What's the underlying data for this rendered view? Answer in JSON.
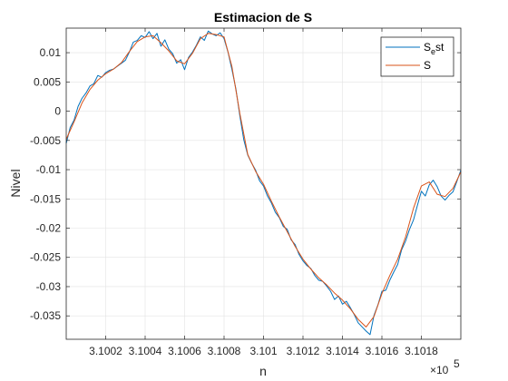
{
  "chart_data": {
    "type": "line",
    "title": "Estimacion de S",
    "xlabel": "n",
    "ylabel": "Nivel",
    "x_exponent_label": "×10",
    "x_exponent_power": "5",
    "xlim": [
      310000,
      310200
    ],
    "ylim": [
      -0.039,
      0.0142
    ],
    "grid": true,
    "legend_position": "top-right",
    "xticks": [
      310020,
      310040,
      310060,
      310080,
      310100,
      310120,
      310140,
      310160,
      310180
    ],
    "xtick_labels": [
      "3.1002",
      "3.1004",
      "3.1006",
      "3.1008",
      "3.101",
      "3.1012",
      "3.1014",
      "3.1016",
      "3.1018"
    ],
    "yticks": [
      0.01,
      0.005,
      0,
      -0.005,
      -0.01,
      -0.015,
      -0.02,
      -0.025,
      -0.03,
      -0.035
    ],
    "ytick_labels": [
      "0.01",
      "0.005",
      "0",
      "-0.005",
      "-0.01",
      "-0.015",
      "-0.02",
      "-0.025",
      "-0.03",
      "-0.035"
    ],
    "series": [
      {
        "name": "S_e st",
        "legend_main": "S",
        "legend_sub": "e",
        "legend_tail": "st",
        "color": "#0072BD",
        "x": [
          310000,
          310002,
          310004,
          310006,
          310008,
          310010,
          310012,
          310014,
          310016,
          310018,
          310020,
          310022,
          310024,
          310026,
          310028,
          310030,
          310032,
          310034,
          310036,
          310038,
          310040,
          310042,
          310044,
          310046,
          310048,
          310050,
          310052,
          310054,
          310056,
          310058,
          310060,
          310062,
          310064,
          310066,
          310068,
          310070,
          310072,
          310074,
          310076,
          310078,
          310080,
          310082,
          310084,
          310086,
          310088,
          310090,
          310092,
          310094,
          310096,
          310098,
          310100,
          310102,
          310104,
          310106,
          310108,
          310110,
          310112,
          310114,
          310116,
          310118,
          310120,
          310122,
          310124,
          310126,
          310128,
          310130,
          310132,
          310134,
          310136,
          310138,
          310140,
          310142,
          310144,
          310146,
          310148,
          310150,
          310152,
          310154,
          310156,
          310158,
          310160,
          310162,
          310164,
          310166,
          310168,
          310170,
          310172,
          310174,
          310176,
          310178,
          310180,
          310182,
          310184,
          310186,
          310188,
          310190,
          310192,
          310194,
          310196,
          310198,
          310200
        ],
        "y": [
          -0.0055,
          -0.0028,
          -0.0015,
          0.0008,
          0.0022,
          0.0031,
          0.0043,
          0.0047,
          0.0061,
          0.0058,
          0.0066,
          0.007,
          0.0072,
          0.0077,
          0.0082,
          0.0087,
          0.0101,
          0.0118,
          0.0121,
          0.0129,
          0.0126,
          0.0136,
          0.0124,
          0.0133,
          0.0111,
          0.0122,
          0.0106,
          0.0098,
          0.0082,
          0.0088,
          0.0071,
          0.0092,
          0.0101,
          0.0113,
          0.0127,
          0.0121,
          0.0137,
          0.0132,
          0.0129,
          0.0134,
          0.0124,
          0.0101,
          0.0071,
          0.0038,
          -0.0008,
          -0.0049,
          -0.0075,
          -0.0089,
          -0.0101,
          -0.0119,
          -0.0128,
          -0.0145,
          -0.0157,
          -0.0173,
          -0.0182,
          -0.0197,
          -0.0202,
          -0.022,
          -0.0228,
          -0.0245,
          -0.0256,
          -0.0264,
          -0.0269,
          -0.0281,
          -0.0289,
          -0.0291,
          -0.0299,
          -0.0308,
          -0.0322,
          -0.0316,
          -0.033,
          -0.0325,
          -0.0336,
          -0.0348,
          -0.0362,
          -0.0369,
          -0.0376,
          -0.0382,
          -0.0349,
          -0.0331,
          -0.0308,
          -0.0306,
          -0.0289,
          -0.0275,
          -0.0262,
          -0.0237,
          -0.0222,
          -0.0202,
          -0.0186,
          -0.0161,
          -0.0137,
          -0.0145,
          -0.0126,
          -0.0118,
          -0.0129,
          -0.0145,
          -0.0152,
          -0.0144,
          -0.0138,
          -0.012,
          -0.0101
        ]
      },
      {
        "name": "S",
        "color": "#D95319",
        "x": [
          310000,
          310004,
          310008,
          310012,
          310016,
          310020,
          310024,
          310028,
          310032,
          310036,
          310040,
          310044,
          310048,
          310052,
          310056,
          310060,
          310064,
          310068,
          310072,
          310076,
          310080,
          310084,
          310088,
          310092,
          310096,
          310100,
          310104,
          310108,
          310112,
          310116,
          310120,
          310124,
          310128,
          310132,
          310136,
          310140,
          310144,
          310148,
          310152,
          310156,
          310160,
          310164,
          310168,
          310172,
          310176,
          310180,
          310184,
          310188,
          310192,
          310196,
          310200
        ],
        "y": [
          -0.0048,
          -0.0018,
          0.0014,
          0.0037,
          0.0053,
          0.0064,
          0.0072,
          0.0083,
          0.0102,
          0.0119,
          0.0127,
          0.0129,
          0.0117,
          0.0103,
          0.0086,
          0.0081,
          0.0099,
          0.0124,
          0.0133,
          0.0131,
          0.0127,
          0.0076,
          -0.0004,
          -0.0074,
          -0.0103,
          -0.0125,
          -0.0154,
          -0.0181,
          -0.0206,
          -0.0231,
          -0.0253,
          -0.027,
          -0.0285,
          -0.0297,
          -0.0311,
          -0.0323,
          -0.0338,
          -0.0356,
          -0.0369,
          -0.0351,
          -0.0312,
          -0.0281,
          -0.0253,
          -0.0215,
          -0.0166,
          -0.0128,
          -0.0121,
          -0.0142,
          -0.0146,
          -0.0132,
          -0.0104
        ]
      }
    ]
  }
}
